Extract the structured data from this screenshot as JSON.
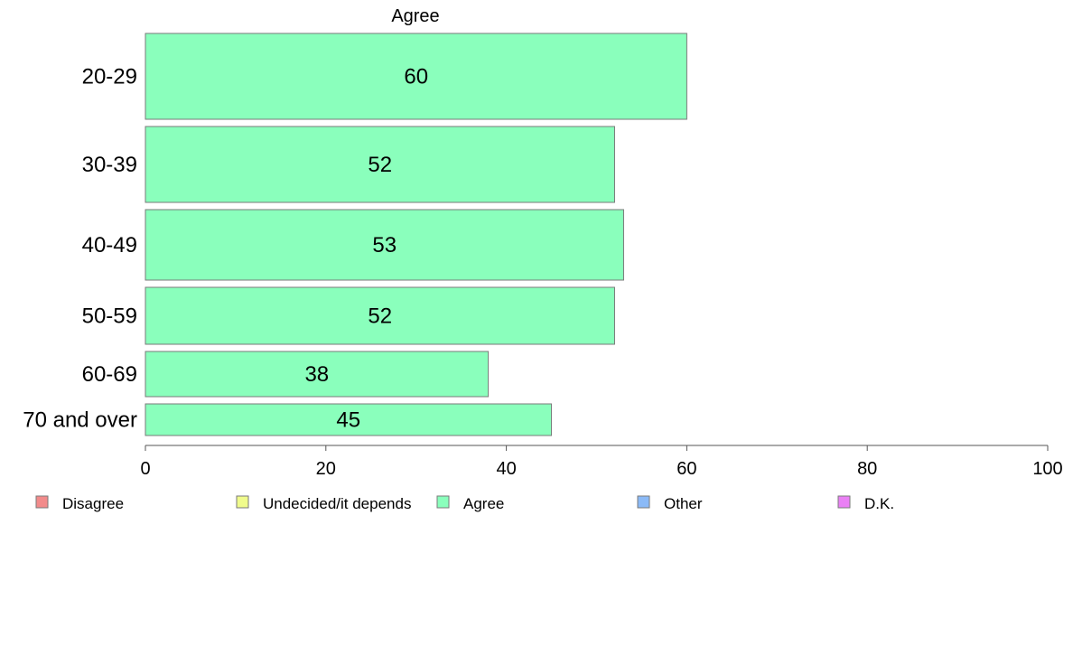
{
  "chart_data": {
    "type": "bar",
    "orientation": "horizontal",
    "title": "Agree",
    "categories": [
      "20-29",
      "30-39",
      "40-49",
      "50-59",
      "60-69",
      "70 and over"
    ],
    "series": [
      {
        "name": "Agree",
        "values": [
          60,
          52,
          53,
          52,
          38,
          45
        ]
      }
    ],
    "data_labels": [
      "60",
      "52",
      "53",
      "52",
      "38",
      "45"
    ],
    "xlim": [
      0,
      100
    ],
    "x_ticks": [
      0,
      20,
      40,
      60,
      80,
      100
    ],
    "x_tick_labels": [
      "0",
      "20",
      "40",
      "60",
      "80",
      "100"
    ],
    "xlabel": "",
    "ylabel": "",
    "grid": false,
    "legend_position": "bottom",
    "legend": [
      {
        "label": "Disagree",
        "color": "#f28b8b"
      },
      {
        "label": "Undecided/it depends",
        "color": "#f0fb8c"
      },
      {
        "label": "Agree",
        "color": "#8affbc"
      },
      {
        "label": "Other",
        "color": "#8bbaf7"
      },
      {
        "label": "D.K.",
        "color": "#ea80f5"
      }
    ],
    "bar_color": "#8affbc"
  }
}
